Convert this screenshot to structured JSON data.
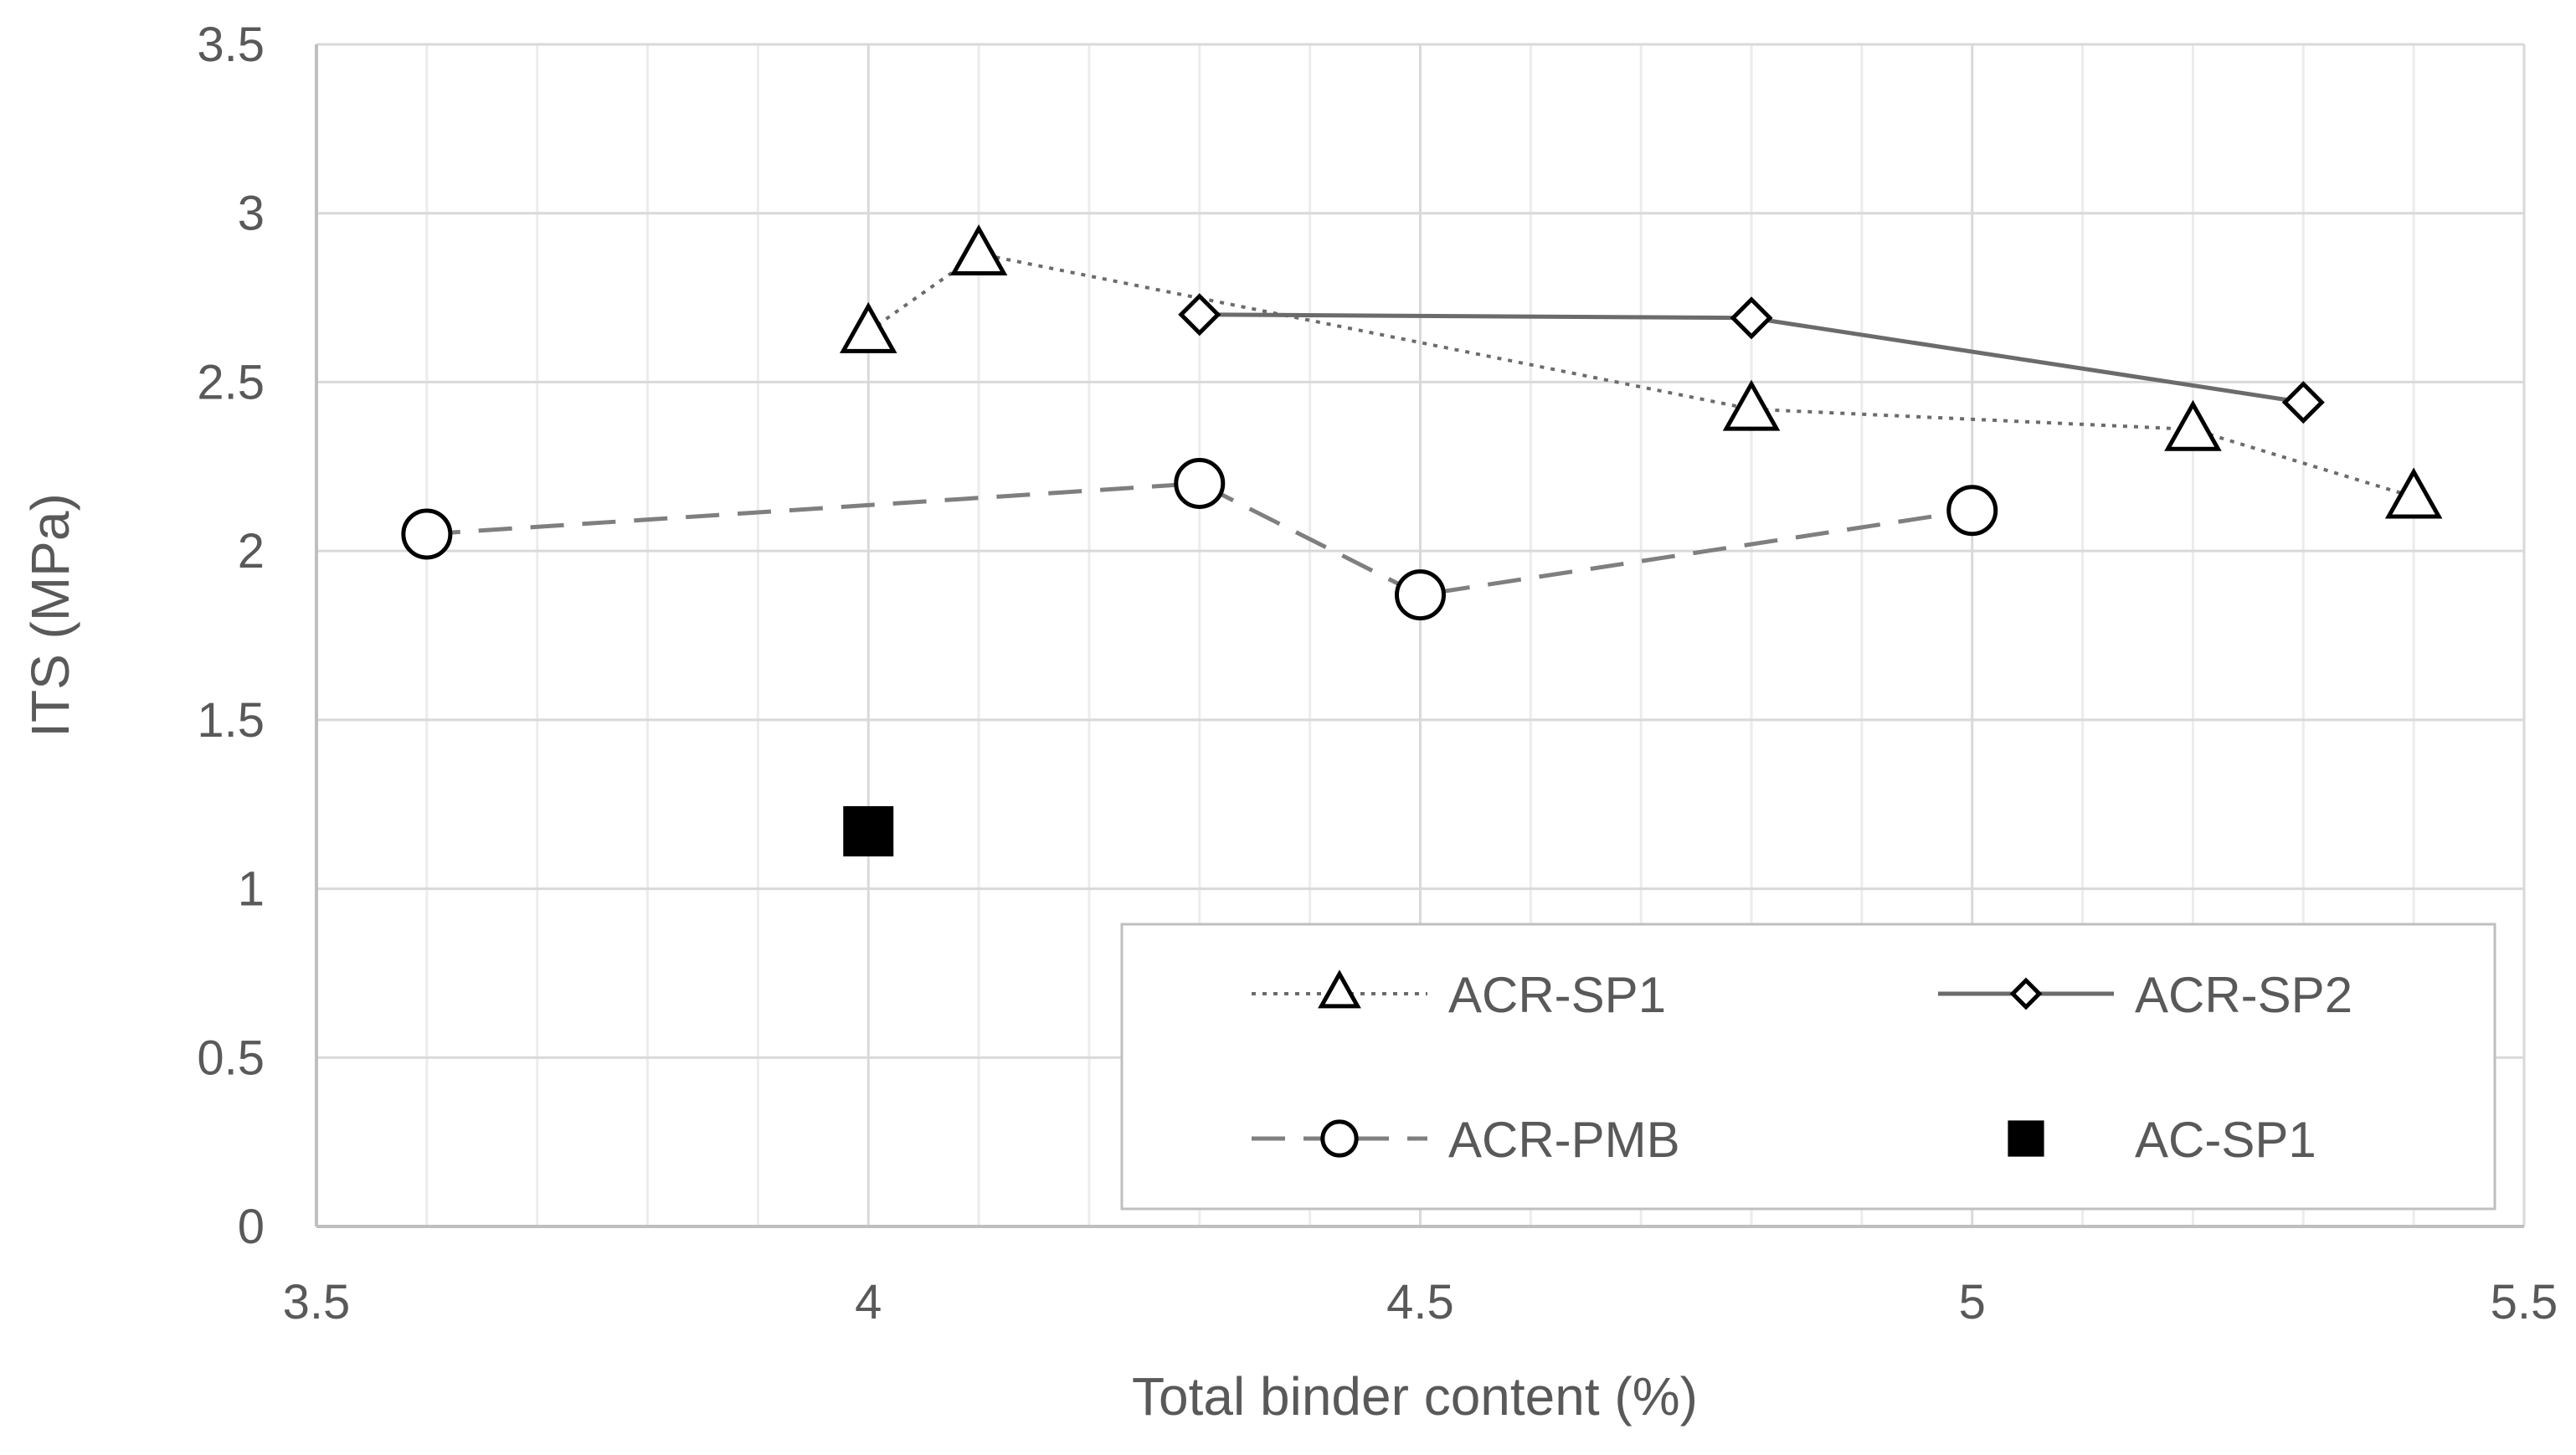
{
  "chart_data": {
    "type": "scatter",
    "xlabel": "Total binder content (%)",
    "ylabel": "ITS (MPa)",
    "xlim": [
      3.5,
      5.5
    ],
    "ylim": [
      0,
      3.5
    ],
    "xticks": [
      3.5,
      4,
      4.5,
      5,
      5.5
    ],
    "xtick_labels": [
      "3.5",
      "4",
      "4.5",
      "5",
      "5.5"
    ],
    "yticks": [
      0,
      0.5,
      1,
      1.5,
      2,
      2.5,
      3,
      3.5
    ],
    "ytick_labels": [
      "0",
      "0.5",
      "1",
      "1.5",
      "2",
      "2.5",
      "3",
      "3.5"
    ],
    "x_minor_step": 0.1,
    "grid": true,
    "legend_position": "bottom-right",
    "series": [
      {
        "name": "ACR-SP1",
        "marker": "triangle",
        "line": "dotted",
        "color": "#000000",
        "x": [
          4.0,
          4.1,
          4.8,
          5.2,
          5.4
        ],
        "y": [
          2.65,
          2.88,
          2.42,
          2.36,
          2.16
        ]
      },
      {
        "name": "ACR-SP2",
        "marker": "diamond",
        "line": "solid",
        "color": "#000000",
        "x": [
          4.3,
          4.8,
          5.3
        ],
        "y": [
          2.7,
          2.69,
          2.44
        ]
      },
      {
        "name": "ACR-PMB",
        "marker": "circle",
        "line": "dashed",
        "color": "#000000",
        "x": [
          3.6,
          4.3,
          4.5,
          5.0
        ],
        "y": [
          2.05,
          2.2,
          1.87,
          2.12
        ]
      },
      {
        "name": "AC-SP1",
        "marker": "square-filled",
        "line": "none",
        "color": "#000000",
        "x": [
          4.0
        ],
        "y": [
          1.17
        ]
      }
    ]
  }
}
